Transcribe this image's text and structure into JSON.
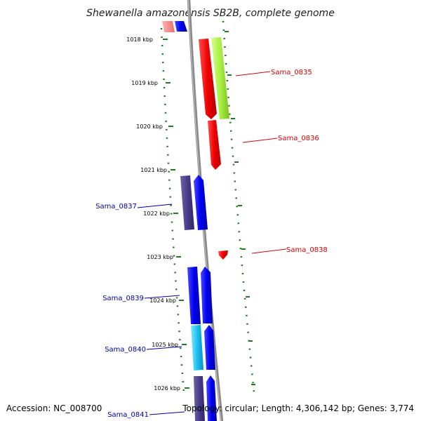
{
  "title": "Shewanella amazonensis SB2B, complete genome",
  "footer": {
    "accession": "Accession: NC_008700",
    "summary": "Topology: circular; Length: 4,306,142 bp; Genes: 3,774"
  },
  "scale": {
    "unit": "kbp",
    "ticks": [
      "1018 kbp",
      "1019 kbp",
      "1020 kbp",
      "1021 kbp",
      "1022 kbp",
      "1023 kbp",
      "1024 kbp",
      "1025 kbp",
      "1026 kbp"
    ]
  },
  "colors": {
    "forward_label": "#dd0000",
    "reverse_label": "#0000aa",
    "axis_dots": "#1a7f1a",
    "backbone": "#8a8a8a"
  },
  "labels": [
    {
      "name": "Sama_0835",
      "strand": "forward"
    },
    {
      "name": "Sama_0836",
      "strand": "forward"
    },
    {
      "name": "Sama_0837",
      "strand": "reverse"
    },
    {
      "name": "Sama_0838",
      "strand": "forward"
    },
    {
      "name": "Sama_0839",
      "strand": "reverse"
    },
    {
      "name": "Sama_0840",
      "strand": "reverse"
    },
    {
      "name": "Sama_0841",
      "strand": "reverse"
    }
  ]
}
